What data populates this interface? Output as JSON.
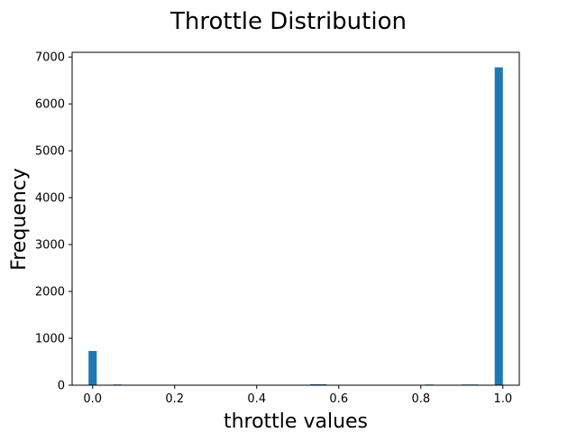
{
  "chart_data": {
    "type": "bar",
    "title": "Throttle Distribution",
    "xlabel": "throttle values",
    "ylabel": "Frequency",
    "xlim": [
      -0.05,
      1.04
    ],
    "ylim": [
      0,
      7100
    ],
    "xticks": [
      0.0,
      0.2,
      0.4,
      0.6,
      0.8,
      1.0
    ],
    "xtick_labels": [
      "0.0",
      "0.2",
      "0.4",
      "0.6",
      "0.8",
      "1.0"
    ],
    "yticks": [
      0,
      1000,
      2000,
      3000,
      4000,
      5000,
      6000,
      7000
    ],
    "ytick_labels": [
      "0",
      "1000",
      "2000",
      "3000",
      "4000",
      "5000",
      "6000",
      "7000"
    ],
    "bins": [
      {
        "x0": -0.01,
        "x1": 0.01,
        "count": 730
      },
      {
        "x0": 0.05,
        "x1": 0.07,
        "count": 15
      },
      {
        "x0": 0.53,
        "x1": 0.57,
        "count": 20
      },
      {
        "x0": 0.81,
        "x1": 0.83,
        "count": 15
      },
      {
        "x0": 0.9,
        "x1": 0.94,
        "count": 15
      },
      {
        "x0": 0.98,
        "x1": 1.0,
        "count": 6780
      }
    ],
    "bar_color": "#1f77b4",
    "grid": false,
    "legend": "none"
  }
}
